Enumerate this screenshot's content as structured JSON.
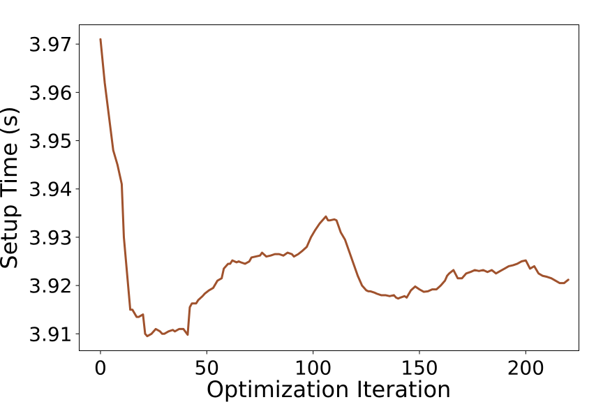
{
  "chart_data": {
    "type": "line",
    "title": "",
    "xlabel": "Optimization Iteration",
    "ylabel": "Setup Time (s)",
    "xlim": [
      -10,
      225
    ],
    "ylim": [
      3.9065,
      3.974
    ],
    "xticks": [
      0,
      50,
      100,
      150,
      200
    ],
    "xtick_labels": [
      "0",
      "50",
      "100",
      "150",
      "200"
    ],
    "yticks": [
      3.91,
      3.92,
      3.93,
      3.94,
      3.95,
      3.96,
      3.97
    ],
    "ytick_labels": [
      "3.91",
      "3.92",
      "3.93",
      "3.94",
      "3.95",
      "3.96",
      "3.97"
    ],
    "grid": false,
    "legend": "none",
    "series": [
      {
        "color": "#a0522d",
        "x": [
          0,
          2,
          4,
          6,
          8,
          10,
          11,
          12,
          14,
          15,
          17,
          18,
          20,
          21,
          22,
          24,
          26,
          28,
          29,
          30,
          32,
          34,
          35,
          37,
          39,
          41,
          42,
          43,
          45,
          46,
          48,
          49,
          51,
          53,
          55,
          57,
          58,
          60,
          61,
          62,
          64,
          65,
          66,
          68,
          70,
          71,
          73,
          75,
          76,
          78,
          80,
          82,
          84,
          86,
          87,
          88,
          90,
          91,
          93,
          95,
          97,
          99,
          101,
          103,
          105,
          106,
          107,
          108,
          110,
          111,
          113,
          115,
          117,
          119,
          121,
          123,
          125,
          126,
          127,
          129,
          130,
          132,
          134,
          136,
          138,
          139,
          140,
          141,
          143,
          144,
          146,
          148,
          150,
          152,
          154,
          156,
          158,
          160,
          162,
          163,
          164,
          166,
          168,
          170,
          172,
          174,
          176,
          178,
          180,
          182,
          184,
          186,
          188,
          190,
          192,
          194,
          196,
          198,
          200,
          202,
          204,
          206,
          208,
          210,
          212,
          214,
          216,
          218,
          220
        ],
        "y": [
          3.971,
          3.962,
          3.955,
          3.948,
          3.945,
          3.941,
          3.93,
          3.925,
          3.915,
          3.915,
          3.9135,
          3.9135,
          3.914,
          3.91,
          3.9095,
          3.91,
          3.911,
          3.9105,
          3.91,
          3.91,
          3.9105,
          3.9108,
          3.9105,
          3.911,
          3.911,
          3.9098,
          3.9155,
          3.9163,
          3.9163,
          3.917,
          3.9178,
          3.9183,
          3.919,
          3.9195,
          3.921,
          3.9215,
          3.9235,
          3.9245,
          3.9245,
          3.9252,
          3.9248,
          3.925,
          3.9248,
          3.9245,
          3.925,
          3.9258,
          3.926,
          3.9262,
          3.9268,
          3.926,
          3.9262,
          3.9265,
          3.9265,
          3.9262,
          3.9265,
          3.9268,
          3.9265,
          3.926,
          3.9265,
          3.9272,
          3.928,
          3.93,
          3.9315,
          3.9328,
          3.9338,
          3.9343,
          3.9335,
          3.9335,
          3.9337,
          3.9335,
          3.931,
          3.9295,
          3.927,
          3.9245,
          3.922,
          3.92,
          3.919,
          3.9188,
          3.9188,
          3.9185,
          3.9183,
          3.918,
          3.918,
          3.9178,
          3.918,
          3.9175,
          3.9173,
          3.9175,
          3.9178,
          3.9175,
          3.919,
          3.9198,
          3.9192,
          3.9187,
          3.9188,
          3.9192,
          3.9192,
          3.92,
          3.921,
          3.922,
          3.9225,
          3.9232,
          3.9215,
          3.9215,
          3.9225,
          3.9228,
          3.9232,
          3.923,
          3.9232,
          3.9228,
          3.9232,
          3.9225,
          3.923,
          3.9235,
          3.924,
          3.9242,
          3.9245,
          3.925,
          3.9252,
          3.9235,
          3.924,
          3.9225,
          3.922,
          3.9218,
          3.9215,
          3.921,
          3.9205,
          3.9205,
          3.9212
        ]
      }
    ]
  }
}
